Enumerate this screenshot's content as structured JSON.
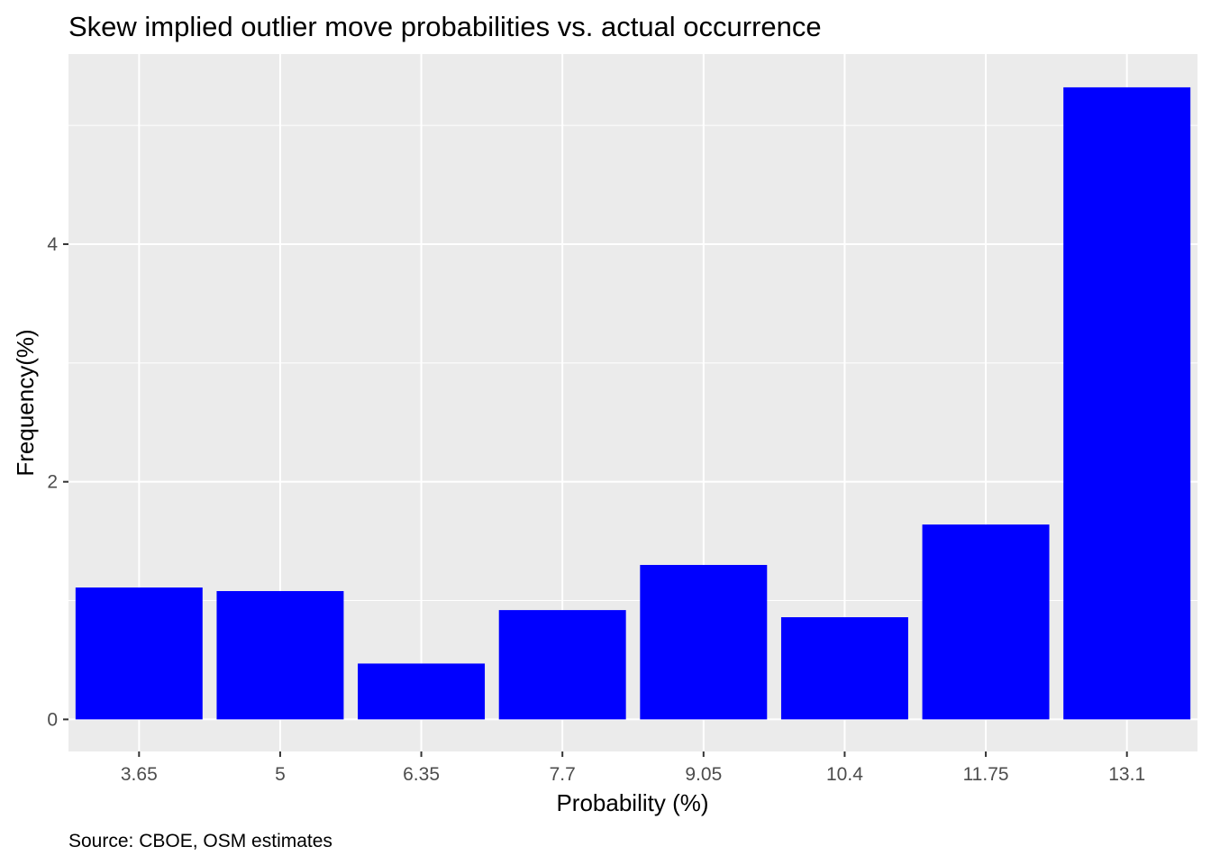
{
  "chart_data": {
    "type": "bar",
    "title": "Skew implied outlier move probabilities vs. actual occurrence",
    "xlabel": "Probability (%)",
    "ylabel": "Frequency(%)",
    "caption": "Source: CBOE, OSM estimates",
    "categories": [
      "3.65",
      "5",
      "6.35",
      "7.7",
      "9.05",
      "10.4",
      "11.75",
      "13.1"
    ],
    "values": [
      1.11,
      1.08,
      0.47,
      0.92,
      1.3,
      0.86,
      1.64,
      5.32
    ],
    "ylim": [
      -0.27,
      5.6
    ],
    "yticks": [
      0,
      2,
      4
    ],
    "y_minor_gridlines": [
      1,
      3,
      5
    ],
    "grid": true,
    "legend": "none",
    "colors": {
      "bar": "#0000ff",
      "panel": "#ebebeb",
      "grid": "#ffffff",
      "tick": "#4d4d4d",
      "text": "#000000"
    }
  }
}
